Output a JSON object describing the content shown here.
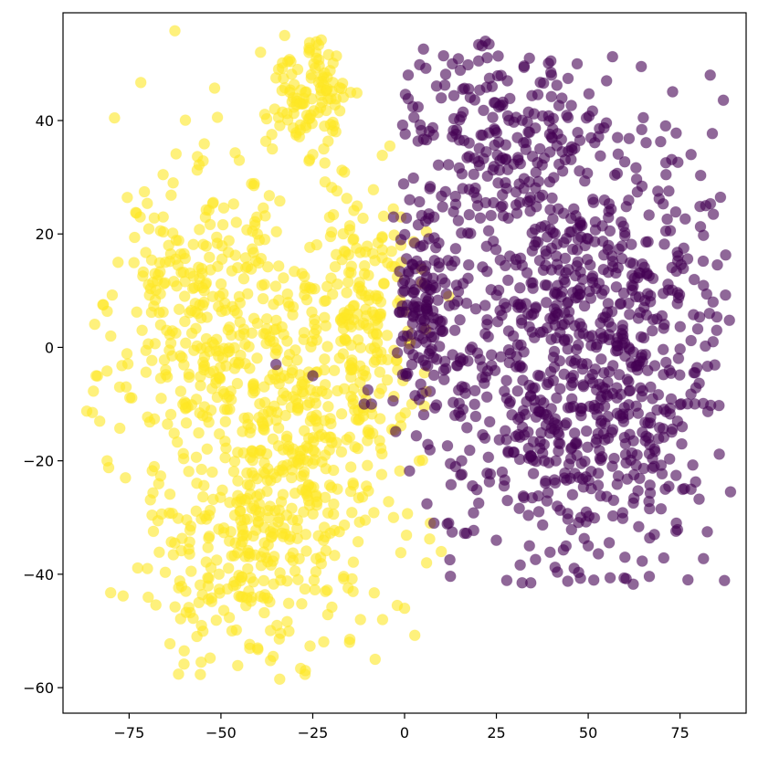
{
  "chart_data": {
    "type": "scatter",
    "title": "",
    "xlabel": "",
    "ylabel": "",
    "xlim": [
      -93,
      93
    ],
    "ylim": [
      -64.5,
      59
    ],
    "xticks": [
      -75,
      -50,
      -25,
      0,
      25,
      50,
      75
    ],
    "yticks": [
      -60,
      -40,
      -20,
      0,
      20,
      40
    ],
    "xtick_labels": [
      "−75",
      "−50",
      "−25",
      "0",
      "25",
      "50",
      "75"
    ],
    "ytick_labels": [
      "−60",
      "−40",
      "−20",
      "0",
      "20",
      "40"
    ],
    "grid": false,
    "legend": "none",
    "marker_alpha": 0.6,
    "series": [
      {
        "color": "#fde725",
        "clusters": [
          {
            "cx": -26,
            "cy": 44,
            "sx": 6,
            "sy": 5,
            "n": 110
          },
          {
            "cx": -55,
            "cy": 5,
            "sx": 14,
            "sy": 14,
            "n": 330
          },
          {
            "cx": -30,
            "cy": -20,
            "sx": 14,
            "sy": 16,
            "n": 420
          },
          {
            "cx": -12,
            "cy": 5,
            "sx": 8,
            "sy": 12,
            "n": 170
          },
          {
            "cx": -50,
            "cy": -40,
            "sx": 12,
            "sy": 8,
            "n": 120
          }
        ],
        "points": [
          [
            -26,
            52
          ],
          [
            -24,
            51
          ],
          [
            -35,
            47.5
          ],
          [
            -34,
            -58.5
          ],
          [
            -60,
            -53.5
          ],
          [
            -85,
            -11.5
          ],
          [
            -84,
            -5
          ],
          [
            -83,
            -13
          ],
          [
            -82,
            7.5
          ],
          [
            -81,
            -20
          ],
          [
            -78,
            15
          ],
          [
            -76,
            -23
          ],
          [
            -72,
            23
          ],
          [
            -70,
            -39
          ],
          [
            -63,
            29
          ],
          [
            -45,
            33
          ],
          [
            -36,
            35
          ],
          [
            -25,
            34
          ],
          [
            -22,
            35
          ],
          [
            -4,
            35.5
          ],
          [
            -1,
            23
          ],
          [
            -1,
            18
          ],
          [
            -3,
            -30
          ],
          [
            -2,
            -45.5
          ],
          [
            0,
            -46
          ],
          [
            2,
            -10
          ],
          [
            4,
            -20
          ],
          [
            6,
            -38
          ],
          [
            7,
            -31
          ],
          [
            10,
            -36
          ],
          [
            12,
            9
          ],
          [
            -8,
            -55
          ],
          [
            -27,
            -57
          ],
          [
            -40,
            -53
          ],
          [
            -47,
            -50
          ],
          [
            -56,
            -45
          ],
          [
            -15,
            -52
          ],
          [
            -6,
            -48
          ],
          [
            -12,
            -48
          ],
          [
            -80,
            2
          ]
        ]
      },
      {
        "color": "#440154",
        "clusters": [
          {
            "cx": 45,
            "cy": 10,
            "sx": 20,
            "sy": 17,
            "n": 600
          },
          {
            "cx": 25,
            "cy": 38,
            "sx": 14,
            "sy": 7,
            "n": 150
          },
          {
            "cx": 40,
            "cy": -18,
            "sx": 18,
            "sy": 12,
            "n": 240
          },
          {
            "cx": 5,
            "cy": 8,
            "sx": 5,
            "sy": 7,
            "n": 110
          },
          {
            "cx": 65,
            "cy": -15,
            "sx": 8,
            "sy": 10,
            "n": 80
          }
        ],
        "points": [
          [
            22,
            54
          ],
          [
            23,
            53.5
          ],
          [
            34,
            51
          ],
          [
            13,
            50
          ],
          [
            1,
            48
          ],
          [
            47,
            50
          ],
          [
            65,
            40.5
          ],
          [
            78,
            34
          ],
          [
            82,
            25
          ],
          [
            84,
            8
          ],
          [
            84,
            1
          ],
          [
            83,
            6
          ],
          [
            8,
            23
          ],
          [
            -3,
            23
          ],
          [
            -25,
            -5
          ],
          [
            -10,
            -7.5
          ],
          [
            -11,
            -10
          ],
          [
            -9,
            -10
          ],
          [
            -35,
            -3
          ],
          [
            8,
            -31
          ],
          [
            12,
            -31
          ],
          [
            25,
            -34
          ],
          [
            34,
            -35
          ],
          [
            32,
            -41.5
          ],
          [
            50,
            -35
          ],
          [
            60,
            -37
          ],
          [
            68,
            -33
          ],
          [
            74,
            -31
          ],
          [
            78,
            -25
          ],
          [
            71,
            -25
          ],
          [
            -1,
            19
          ],
          [
            0,
            10
          ],
          [
            2,
            -3
          ],
          [
            40,
            48
          ],
          [
            58,
            37
          ],
          [
            10,
            44
          ],
          [
            28,
            47
          ],
          [
            55,
            47
          ],
          [
            85,
            3
          ],
          [
            48,
            -30
          ]
        ]
      }
    ]
  }
}
